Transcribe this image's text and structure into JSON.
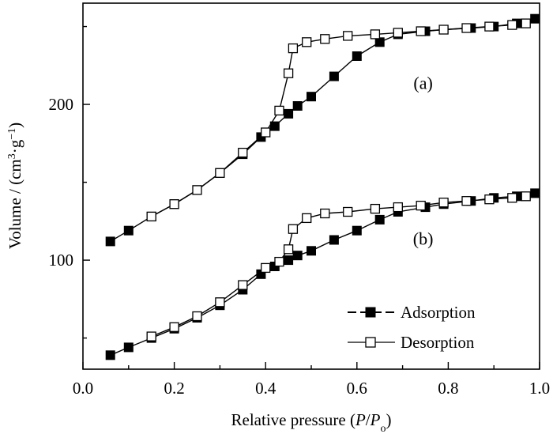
{
  "chart_data": {
    "type": "line",
    "xlabel": {
      "prefix": "Relative pressure (",
      "P": "P",
      "slash": "/",
      "Po": "P",
      "o": "o",
      "suffix": ")"
    },
    "ylabel": {
      "prefix": "Volume / (cm",
      "sup3": "3",
      "mid": "·g",
      "supm1": "−1",
      "suffix": ")"
    },
    "xlim": [
      0.0,
      1.0
    ],
    "ylim": [
      30,
      265
    ],
    "xticks": [
      "0.0",
      "0.2",
      "0.4",
      "0.6",
      "0.8",
      "1.0"
    ],
    "yticks": [
      "100",
      "200"
    ],
    "annotations": [
      {
        "text": "(a)",
        "x": 0.745,
        "y": 210
      },
      {
        "text": "(b)",
        "x": 0.745,
        "y": 110
      }
    ],
    "legend": {
      "placement": "bottom-right",
      "entries": [
        "Adsorption",
        "Desorption"
      ]
    },
    "series": [
      {
        "name": "Adsorption",
        "marker": "filled-square",
        "x": [
          0.06,
          0.1,
          0.15,
          0.2,
          0.25,
          0.3,
          0.35,
          0.39,
          0.42,
          0.45,
          0.47,
          0.5,
          0.55,
          0.6,
          0.65,
          0.69,
          0.75,
          0.79,
          0.85,
          0.9,
          0.95,
          0.99
        ],
        "y_a": [
          112,
          119,
          128,
          136,
          145,
          156,
          168,
          179,
          186,
          194,
          199,
          205,
          218,
          231,
          240,
          245,
          247,
          248,
          249,
          250,
          252,
          255
        ],
        "y_b": [
          39,
          44,
          50,
          56,
          63,
          71,
          81,
          91,
          96,
          100,
          103,
          106,
          113,
          119,
          126,
          131,
          134,
          136,
          138,
          140,
          141,
          143
        ]
      },
      {
        "name": "Desorption",
        "marker": "open-square",
        "x": [
          0.15,
          0.2,
          0.25,
          0.3,
          0.35,
          0.4,
          0.43,
          0.45,
          0.46,
          0.49,
          0.53,
          0.58,
          0.64,
          0.69,
          0.74,
          0.79,
          0.84,
          0.89,
          0.94,
          0.97
        ],
        "y_a": [
          128,
          136,
          145,
          156,
          169,
          182,
          196,
          220,
          236,
          240,
          242,
          244,
          245,
          246,
          247,
          248,
          249,
          250,
          251,
          252
        ],
        "y_b": [
          51,
          57,
          64,
          73,
          84,
          95,
          99,
          107,
          120,
          127,
          130,
          131,
          133,
          134,
          135,
          137,
          138,
          139,
          140,
          141
        ]
      }
    ]
  }
}
